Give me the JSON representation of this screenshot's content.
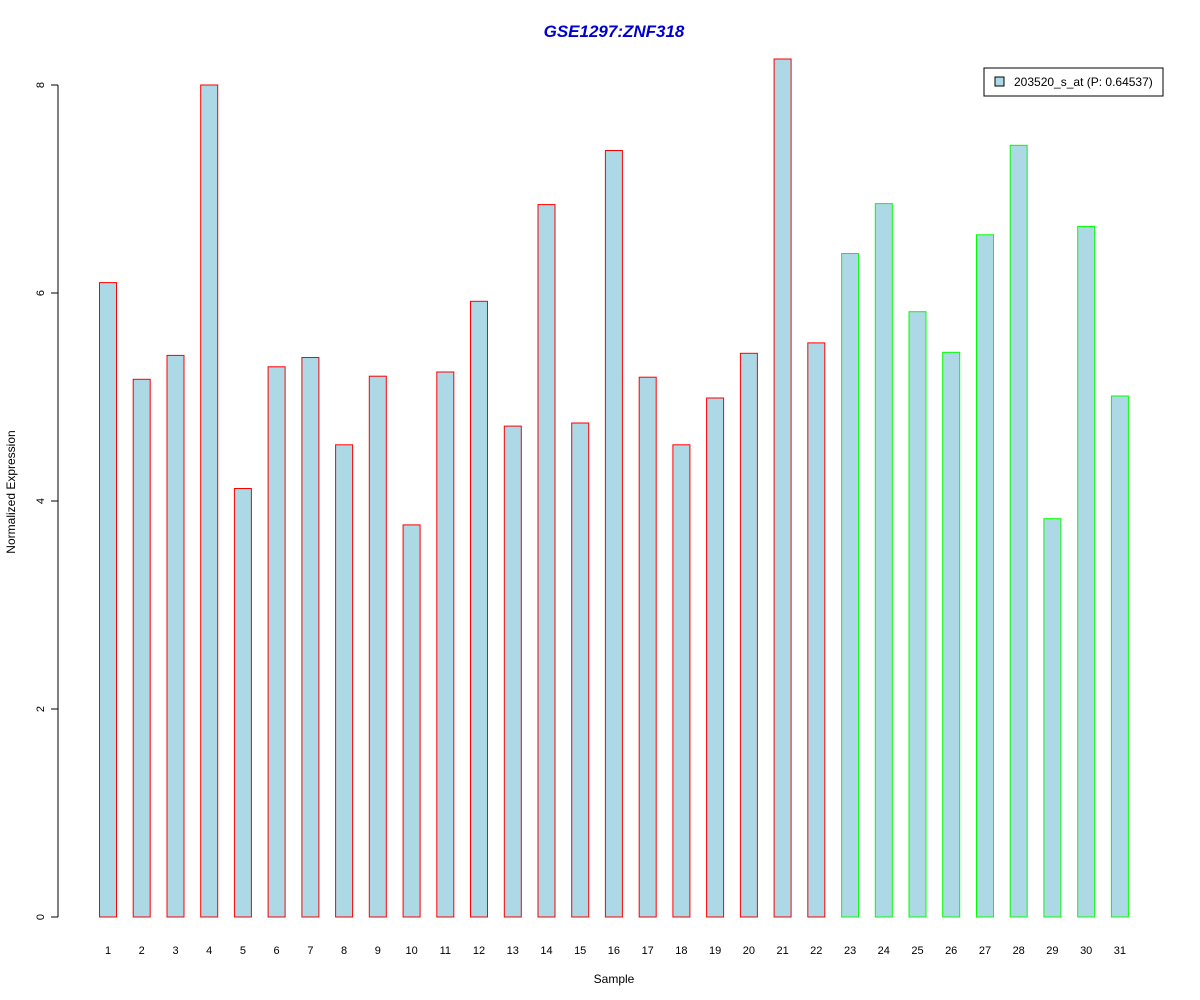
{
  "chart_data": {
    "type": "bar",
    "title": "GSE1297:ZNF318",
    "xlabel": "Sample",
    "ylabel": "Normalized Expression",
    "ylim": [
      0,
      8
    ],
    "y_ticks": [
      "0",
      "2",
      "4",
      "6",
      "8"
    ],
    "grid": false,
    "legend_position": "top-right",
    "categories": [
      "1",
      "2",
      "3",
      "4",
      "5",
      "6",
      "7",
      "8",
      "9",
      "10",
      "11",
      "12",
      "13",
      "14",
      "15",
      "16",
      "17",
      "18",
      "19",
      "20",
      "21",
      "22",
      "23",
      "24",
      "25",
      "26",
      "27",
      "28",
      "29",
      "30",
      "31"
    ],
    "series": [
      {
        "name": "203520_s_at (P: 0.64537)",
        "values": [
          6.1,
          5.17,
          5.4,
          8.0,
          4.12,
          5.29,
          5.38,
          4.54,
          5.2,
          3.77,
          5.24,
          5.92,
          4.72,
          6.85,
          4.75,
          7.37,
          5.19,
          4.54,
          4.99,
          5.42,
          8.25,
          5.52,
          6.38,
          6.86,
          5.82,
          5.43,
          6.56,
          7.42,
          3.83,
          6.64,
          5.01
        ],
        "groups": [
          "red",
          "red",
          "red",
          "red",
          "red",
          "red",
          "red",
          "red",
          "red",
          "red",
          "red",
          "red",
          "red",
          "red",
          "red",
          "red",
          "red",
          "red",
          "red",
          "red",
          "red",
          "red",
          "green",
          "green",
          "green",
          "green",
          "green",
          "green",
          "green",
          "green",
          "green"
        ]
      }
    ],
    "colors": {
      "fill": "#ADD8E6",
      "group_red": "#FF0000",
      "group_green": "#00FF00",
      "title": "#0000CC",
      "axis": "#000000"
    }
  }
}
